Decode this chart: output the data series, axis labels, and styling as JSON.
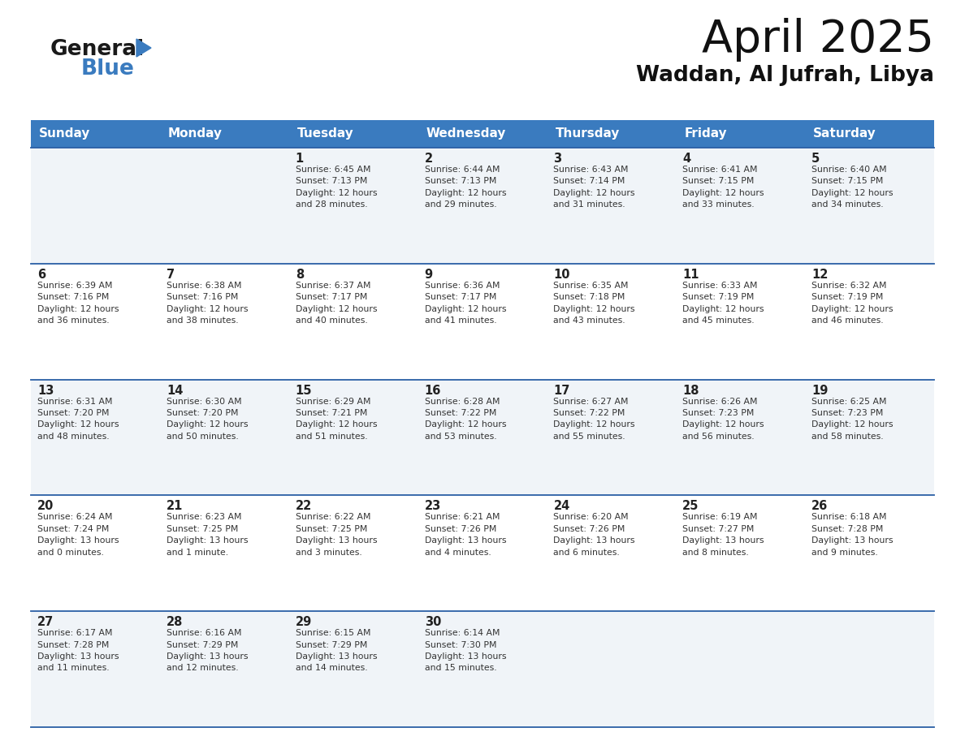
{
  "title": "April 2025",
  "subtitle": "Waddan, Al Jufrah, Libya",
  "header_bg_color": "#3a7bbf",
  "header_text_color": "#ffffff",
  "row_line_color": "#2a5fa5",
  "days_of_week": [
    "Sunday",
    "Monday",
    "Tuesday",
    "Wednesday",
    "Thursday",
    "Friday",
    "Saturday"
  ],
  "calendar": [
    [
      {
        "day": "",
        "info": ""
      },
      {
        "day": "",
        "info": ""
      },
      {
        "day": "1",
        "info": "Sunrise: 6:45 AM\nSunset: 7:13 PM\nDaylight: 12 hours\nand 28 minutes."
      },
      {
        "day": "2",
        "info": "Sunrise: 6:44 AM\nSunset: 7:13 PM\nDaylight: 12 hours\nand 29 minutes."
      },
      {
        "day": "3",
        "info": "Sunrise: 6:43 AM\nSunset: 7:14 PM\nDaylight: 12 hours\nand 31 minutes."
      },
      {
        "day": "4",
        "info": "Sunrise: 6:41 AM\nSunset: 7:15 PM\nDaylight: 12 hours\nand 33 minutes."
      },
      {
        "day": "5",
        "info": "Sunrise: 6:40 AM\nSunset: 7:15 PM\nDaylight: 12 hours\nand 34 minutes."
      }
    ],
    [
      {
        "day": "6",
        "info": "Sunrise: 6:39 AM\nSunset: 7:16 PM\nDaylight: 12 hours\nand 36 minutes."
      },
      {
        "day": "7",
        "info": "Sunrise: 6:38 AM\nSunset: 7:16 PM\nDaylight: 12 hours\nand 38 minutes."
      },
      {
        "day": "8",
        "info": "Sunrise: 6:37 AM\nSunset: 7:17 PM\nDaylight: 12 hours\nand 40 minutes."
      },
      {
        "day": "9",
        "info": "Sunrise: 6:36 AM\nSunset: 7:17 PM\nDaylight: 12 hours\nand 41 minutes."
      },
      {
        "day": "10",
        "info": "Sunrise: 6:35 AM\nSunset: 7:18 PM\nDaylight: 12 hours\nand 43 minutes."
      },
      {
        "day": "11",
        "info": "Sunrise: 6:33 AM\nSunset: 7:19 PM\nDaylight: 12 hours\nand 45 minutes."
      },
      {
        "day": "12",
        "info": "Sunrise: 6:32 AM\nSunset: 7:19 PM\nDaylight: 12 hours\nand 46 minutes."
      }
    ],
    [
      {
        "day": "13",
        "info": "Sunrise: 6:31 AM\nSunset: 7:20 PM\nDaylight: 12 hours\nand 48 minutes."
      },
      {
        "day": "14",
        "info": "Sunrise: 6:30 AM\nSunset: 7:20 PM\nDaylight: 12 hours\nand 50 minutes."
      },
      {
        "day": "15",
        "info": "Sunrise: 6:29 AM\nSunset: 7:21 PM\nDaylight: 12 hours\nand 51 minutes."
      },
      {
        "day": "16",
        "info": "Sunrise: 6:28 AM\nSunset: 7:22 PM\nDaylight: 12 hours\nand 53 minutes."
      },
      {
        "day": "17",
        "info": "Sunrise: 6:27 AM\nSunset: 7:22 PM\nDaylight: 12 hours\nand 55 minutes."
      },
      {
        "day": "18",
        "info": "Sunrise: 6:26 AM\nSunset: 7:23 PM\nDaylight: 12 hours\nand 56 minutes."
      },
      {
        "day": "19",
        "info": "Sunrise: 6:25 AM\nSunset: 7:23 PM\nDaylight: 12 hours\nand 58 minutes."
      }
    ],
    [
      {
        "day": "20",
        "info": "Sunrise: 6:24 AM\nSunset: 7:24 PM\nDaylight: 13 hours\nand 0 minutes."
      },
      {
        "day": "21",
        "info": "Sunrise: 6:23 AM\nSunset: 7:25 PM\nDaylight: 13 hours\nand 1 minute."
      },
      {
        "day": "22",
        "info": "Sunrise: 6:22 AM\nSunset: 7:25 PM\nDaylight: 13 hours\nand 3 minutes."
      },
      {
        "day": "23",
        "info": "Sunrise: 6:21 AM\nSunset: 7:26 PM\nDaylight: 13 hours\nand 4 minutes."
      },
      {
        "day": "24",
        "info": "Sunrise: 6:20 AM\nSunset: 7:26 PM\nDaylight: 13 hours\nand 6 minutes."
      },
      {
        "day": "25",
        "info": "Sunrise: 6:19 AM\nSunset: 7:27 PM\nDaylight: 13 hours\nand 8 minutes."
      },
      {
        "day": "26",
        "info": "Sunrise: 6:18 AM\nSunset: 7:28 PM\nDaylight: 13 hours\nand 9 minutes."
      }
    ],
    [
      {
        "day": "27",
        "info": "Sunrise: 6:17 AM\nSunset: 7:28 PM\nDaylight: 13 hours\nand 11 minutes."
      },
      {
        "day": "28",
        "info": "Sunrise: 6:16 AM\nSunset: 7:29 PM\nDaylight: 13 hours\nand 12 minutes."
      },
      {
        "day": "29",
        "info": "Sunrise: 6:15 AM\nSunset: 7:29 PM\nDaylight: 13 hours\nand 14 minutes."
      },
      {
        "day": "30",
        "info": "Sunrise: 6:14 AM\nSunset: 7:30 PM\nDaylight: 13 hours\nand 15 minutes."
      },
      {
        "day": "",
        "info": ""
      },
      {
        "day": "",
        "info": ""
      },
      {
        "day": "",
        "info": ""
      }
    ]
  ],
  "logo_general_color": "#1a1a1a",
  "logo_blue_color": "#3a7bbf",
  "logo_triangle_color": "#3a7bbf",
  "fig_width": 11.88,
  "fig_height": 9.18,
  "dpi": 100
}
